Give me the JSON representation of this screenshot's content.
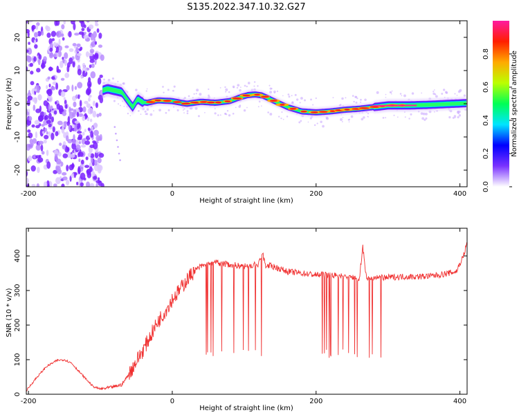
{
  "title": "S135.2022.347.10.32.G27",
  "chart_data": [
    {
      "type": "heatmap",
      "xlabel": "Height of straight line (km)",
      "ylabel": "Frequency (Hz)",
      "xlim": [
        -203,
        410
      ],
      "ylim": [
        -25,
        25
      ],
      "xticks": [
        "-200",
        "0",
        "200",
        "400"
      ],
      "yticks": [
        "20",
        "10",
        "0",
        "-10",
        "-20"
      ],
      "noise_region_x": [
        -203,
        -97
      ],
      "ridge": {
        "x": [
          -97,
          -90,
          -80,
          -70,
          -62,
          -55,
          -48,
          -42,
          -35,
          -20,
          0,
          20,
          40,
          60,
          80,
          95,
          105,
          115,
          125,
          140,
          160,
          180,
          200,
          220,
          240,
          260,
          280,
          300,
          330,
          360,
          390,
          410
        ],
        "y": [
          4,
          4.5,
          4,
          3.5,
          1,
          -1,
          1.5,
          0.5,
          0.3,
          1,
          0.8,
          0,
          0.6,
          0.3,
          0.8,
          2,
          2.6,
          2.8,
          2.5,
          1,
          -1,
          -2.3,
          -2.6,
          -2.3,
          -1.8,
          -1.5,
          -1,
          -0.5,
          -0.5,
          -0.3,
          0,
          0.2
        ]
      },
      "colorbar": {
        "label": "Normalized spectral amplitude",
        "range": [
          0,
          1
        ],
        "ticks": [
          "0.0",
          "0.2",
          "0.4",
          "0.6",
          "0.8"
        ],
        "colors": [
          "#ffffff",
          "#7a33ff",
          "#0000ff",
          "#00e5ff",
          "#00ff55",
          "#bbff00",
          "#ffaa00",
          "#ff1e00",
          "#ff1aa0"
        ]
      }
    },
    {
      "type": "line",
      "xlabel": "Height of straight line (km)",
      "ylabel": "SNR (10 * v/v)",
      "xlim": [
        -203,
        410
      ],
      "ylim": [
        0,
        480
      ],
      "xticks": [
        "-200",
        "0",
        "200",
        "400"
      ],
      "yticks": [
        "400",
        "300",
        "200",
        "100",
        "0"
      ],
      "color": "#f03030",
      "series": [
        {
          "x": [
            -203,
            -190,
            -175,
            -160,
            -150,
            -140,
            -125,
            -110,
            -100,
            -90,
            -80,
            -70,
            -60,
            -50,
            -40,
            -30,
            -20,
            -10,
            0,
            10,
            20,
            30,
            40,
            60,
            80,
            100,
            120,
            125,
            130,
            140,
            160,
            180,
            200,
            220,
            240,
            260,
            265,
            270,
            280,
            300,
            320,
            340,
            360,
            380,
            395,
            405,
            410
          ],
          "values": [
            10,
            45,
            80,
            98,
            100,
            90,
            55,
            22,
            15,
            18,
            22,
            28,
            60,
            95,
            130,
            170,
            210,
            240,
            275,
            300,
            330,
            355,
            370,
            380,
            375,
            370,
            375,
            410,
            372,
            370,
            355,
            350,
            345,
            345,
            340,
            335,
            425,
            335,
            335,
            338,
            340,
            340,
            342,
            348,
            355,
            400,
            440
          ],
          "dropouts": {
            "ranges": [
              [
                45,
                135
              ],
              [
                205,
                300
              ]
            ],
            "floor": 105
          }
        }
      ]
    }
  ]
}
